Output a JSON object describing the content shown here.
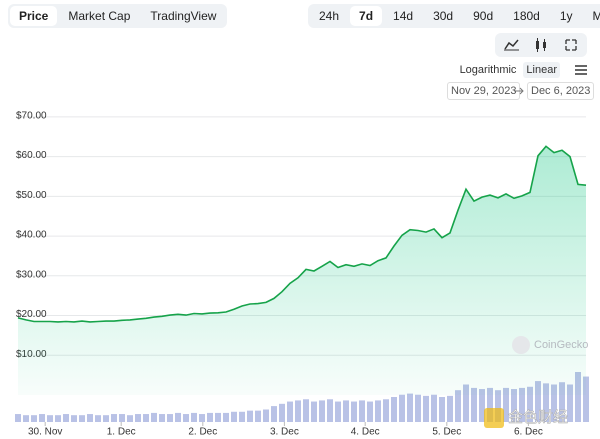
{
  "header": {
    "tabs": [
      "Price",
      "Market Cap",
      "TradingView"
    ],
    "ranges": [
      "24h",
      "7d",
      "14d",
      "30d",
      "90d",
      "180d",
      "1y",
      "Max"
    ],
    "scales": [
      "Logarithmic",
      "Linear"
    ],
    "date_from": "Nov 29, 2023",
    "date_to": "Dec 6, 2023"
  },
  "chart_data": {
    "type": "line",
    "color": "#16a34a",
    "fill": "#16c784",
    "grid": true,
    "ylim": [
      0,
      75
    ],
    "yticks": [
      {
        "value": 10,
        "label": "$10.00"
      },
      {
        "value": 20,
        "label": "$20.00"
      },
      {
        "value": 30,
        "label": "$30.00"
      },
      {
        "value": 40,
        "label": "$40.00"
      },
      {
        "value": 50,
        "label": "$50.00"
      },
      {
        "value": 60,
        "label": "$60.00"
      },
      {
        "value": 70,
        "label": "$70.00"
      }
    ],
    "xlim": [
      0,
      71
    ],
    "xticks": [
      {
        "value": 3.4,
        "label": "30. Nov"
      },
      {
        "value": 12.9,
        "label": "1. Dec"
      },
      {
        "value": 23.1,
        "label": "2. Dec"
      },
      {
        "value": 33.3,
        "label": "3. Dec"
      },
      {
        "value": 43.4,
        "label": "4. Dec"
      },
      {
        "value": 53.6,
        "label": "5. Dec"
      },
      {
        "value": 63.8,
        "label": "6. Dec"
      }
    ],
    "values": [
      19.4,
      18.9,
      18.5,
      18.5,
      18.5,
      18.4,
      18.5,
      18.4,
      18.6,
      18.4,
      18.5,
      18.6,
      18.6,
      18.8,
      18.9,
      19.1,
      19.3,
      19.6,
      19.8,
      20.1,
      20.3,
      20.1,
      20.5,
      20.4,
      20.6,
      20.7,
      20.9,
      21.6,
      22.4,
      22.9,
      23.0,
      23.3,
      24.3,
      26.0,
      28.1,
      29.5,
      31.6,
      31.2,
      32.4,
      33.6,
      32.1,
      32.8,
      32.4,
      33.0,
      32.6,
      33.8,
      34.5,
      37.5,
      40.2,
      41.6,
      41.4,
      41.0,
      41.8,
      39.6,
      40.8,
      46.5,
      51.8,
      48.8,
      49.8,
      50.3,
      49.6,
      50.6,
      49.5,
      50.1,
      51.0,
      60.2,
      62.6,
      61.0,
      61.6,
      60.0,
      53.0,
      52.8
    ],
    "volume": [
      7,
      6,
      6,
      7,
      6,
      6,
      7,
      6,
      6,
      7,
      6,
      6,
      7,
      7,
      6,
      7,
      7,
      8,
      7,
      7,
      8,
      7,
      8,
      7,
      8,
      8,
      8,
      9,
      9,
      10,
      10,
      11,
      14,
      16,
      18,
      19,
      20,
      18,
      19,
      20,
      18,
      19,
      18,
      19,
      18,
      19,
      20,
      22,
      24,
      25,
      24,
      23,
      24,
      22,
      23,
      28,
      33,
      30,
      29,
      30,
      28,
      30,
      29,
      30,
      31,
      36,
      34,
      33,
      35,
      33,
      44,
      40
    ],
    "volume_color": "#b9c2e6",
    "watermarks": [
      "CoinGecko",
      "金色财经"
    ]
  }
}
